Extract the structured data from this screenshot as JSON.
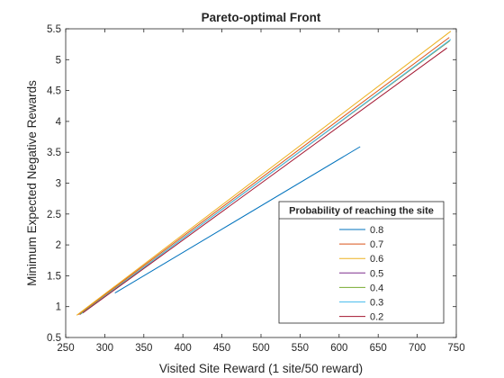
{
  "chart_data": {
    "type": "line",
    "title": "Pareto-optimal Front",
    "xlabel": "Visited Site Reward (1 site/50 reward)",
    "ylabel": "Minimum Expected Negative Rewards",
    "xlim": [
      250,
      750
    ],
    "ylim": [
      0.5,
      5.5
    ],
    "xticks": [
      250,
      300,
      350,
      400,
      450,
      500,
      550,
      600,
      650,
      700,
      750
    ],
    "yticks": [
      0.5,
      1,
      1.5,
      2,
      2.5,
      3,
      3.5,
      4,
      4.5,
      5,
      5.5
    ],
    "grid": false,
    "legend": {
      "title": "Probability of reaching the site",
      "placement": "bottom-right"
    },
    "series": [
      {
        "name": "0.8",
        "color": "#0072BD",
        "x": [
          313,
          627
        ],
        "y": [
          1.22,
          3.59
        ]
      },
      {
        "name": "0.7",
        "color": "#D95319",
        "x": [
          266,
          741
        ],
        "y": [
          0.87,
          5.36
        ]
      },
      {
        "name": "0.6",
        "color": "#EDB120",
        "x": [
          264,
          743
        ],
        "y": [
          0.86,
          5.46
        ]
      },
      {
        "name": "0.5",
        "color": "#7E2F8E",
        "x": [
          268,
          741
        ],
        "y": [
          0.87,
          5.3
        ]
      },
      {
        "name": "0.4",
        "color": "#77AC30",
        "x": [
          269,
          742
        ],
        "y": [
          0.88,
          5.31
        ]
      },
      {
        "name": "0.3",
        "color": "#4DBEEE",
        "x": [
          271,
          743
        ],
        "y": [
          0.89,
          5.33
        ]
      },
      {
        "name": "0.2",
        "color": "#A2142F",
        "x": [
          272,
          738
        ],
        "y": [
          0.9,
          5.19
        ]
      }
    ]
  }
}
